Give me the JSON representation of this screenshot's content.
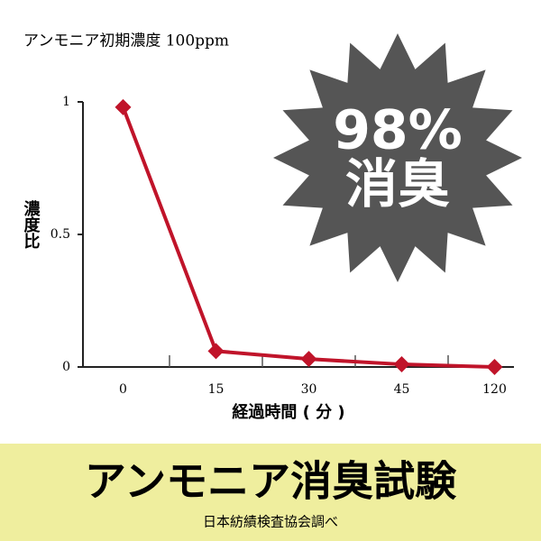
{
  "chart_data": {
    "type": "line",
    "title": "アンモニア初期濃度 100ppm",
    "y_label": "濃度比",
    "x_label": "経過時間 ( 分 )",
    "categories": [
      "0",
      "15",
      "30",
      "45",
      "120"
    ],
    "series": [
      {
        "color": "#c0142a",
        "values": [
          0.98,
          0.06,
          0.03,
          0.01,
          0
        ]
      }
    ],
    "ylim": [
      0,
      1
    ],
    "yticks": [
      0,
      0.5,
      1
    ],
    "annotations": [
      "98%",
      "消臭"
    ]
  },
  "footer": {
    "title": "アンモニア消臭試験",
    "source": "日本紡績検査協会調べ"
  }
}
